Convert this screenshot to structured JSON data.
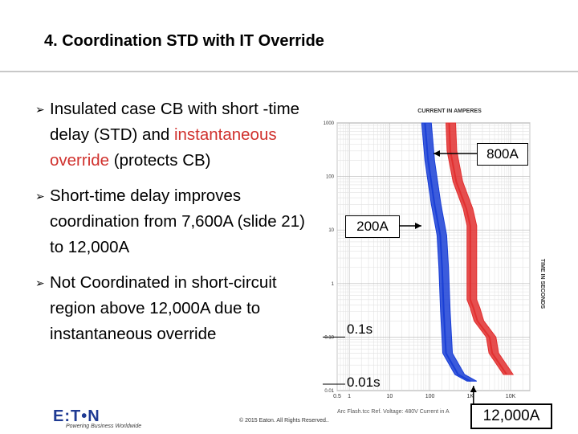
{
  "title": "4. Coordination STD with IT Override",
  "bullets": [
    {
      "parts": [
        "Insulated case CB with short -time delay (STD) and ",
        "instantaneous override",
        " (protects CB)"
      ]
    },
    {
      "parts": [
        "Short-time delay improves coordination from 7,600A (slide 21) to 12,000A"
      ]
    },
    {
      "parts": [
        "Not Coordinated in short-circuit region above 12,000A due to instantaneous override"
      ]
    }
  ],
  "chart_data": {
    "type": "line",
    "title": "CURRENT IN AMPERES",
    "ylabel": "TIME IN SECONDS",
    "xscale": "log",
    "yscale": "log",
    "xlim": [
      0.5,
      30000
    ],
    "ylim": [
      0.01,
      1000
    ],
    "x_ticks": [
      "0.5",
      "1",
      "10",
      "100",
      "1K",
      "10K"
    ],
    "y_ticks": [
      "1000",
      "100",
      "10",
      "1",
      "0.10",
      "0.01"
    ],
    "footer_text": "Arc Flash.tcc   Ref. Voltage: 480V   Current in A",
    "series": [
      {
        "name": "200A",
        "color": "#1a3fd6",
        "points": [
          [
            75,
            1000
          ],
          [
            90,
            200
          ],
          [
            130,
            30
          ],
          [
            180,
            8
          ],
          [
            200,
            2
          ],
          [
            220,
            0.3
          ],
          [
            250,
            0.05
          ],
          [
            500,
            0.02
          ],
          [
            1000,
            0.015
          ]
        ]
      },
      {
        "name": "800A",
        "color": "#e23030",
        "points": [
          [
            300,
            1000
          ],
          [
            320,
            300
          ],
          [
            450,
            80
          ],
          [
            800,
            25
          ],
          [
            1000,
            12
          ],
          [
            1000,
            0.5
          ],
          [
            1200,
            0.35
          ],
          [
            1500,
            0.2
          ],
          [
            3000,
            0.1
          ],
          [
            3500,
            0.05
          ],
          [
            8000,
            0.02
          ]
        ]
      }
    ],
    "annotations": {
      "a800": "800A",
      "a200": "200A",
      "t01": "0.1s",
      "t001": "0.01s",
      "i12000": "12,000A"
    }
  },
  "footer": {
    "logo": "E:T•N",
    "tagline": "Powering Business Worldwide",
    "copyright": "© 2015 Eaton. All Rights Reserved.."
  }
}
